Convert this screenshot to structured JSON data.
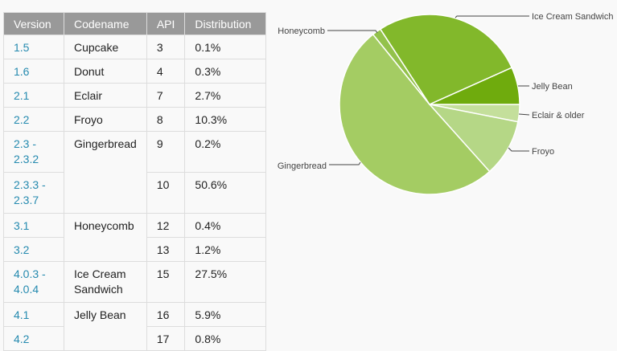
{
  "table": {
    "headers": [
      "Version",
      "Codename",
      "API",
      "Distribution"
    ],
    "rows": [
      {
        "version": "1.5",
        "codename": "Cupcake",
        "api": "3",
        "distribution": "0.1%"
      },
      {
        "version": "1.6",
        "codename": "Donut",
        "api": "4",
        "distribution": "0.3%"
      },
      {
        "version": "2.1",
        "codename": "Eclair",
        "api": "7",
        "distribution": "2.7%"
      },
      {
        "version": "2.2",
        "codename": "Froyo",
        "api": "8",
        "distribution": "10.3%"
      },
      {
        "version_line1": "2.3 -",
        "version_line2": "2.3.2",
        "codename": "Gingerbread",
        "api": "9",
        "distribution": "0.2%"
      },
      {
        "version_line1": "2.3.3 -",
        "version_line2": "2.3.7",
        "api": "10",
        "distribution": "50.6%"
      },
      {
        "version": "3.1",
        "codename": "Honeycomb",
        "api": "12",
        "distribution": "0.4%"
      },
      {
        "version": "3.2",
        "api": "13",
        "distribution": "1.2%"
      },
      {
        "version_line1": "4.0.3 -",
        "version_line2": "4.0.4",
        "codename_line1": "Ice Cream",
        "codename_line2": "Sandwich",
        "api": "15",
        "distribution": "27.5%"
      },
      {
        "version": "4.1",
        "codename": "Jelly Bean",
        "api": "16",
        "distribution": "5.9%"
      },
      {
        "version": "4.2",
        "api": "17",
        "distribution": "0.8%"
      }
    ]
  },
  "chart_data": {
    "type": "pie",
    "title": "",
    "categories": [
      "Eclair & older",
      "Froyo",
      "Gingerbread",
      "Honeycomb",
      "Ice Cream Sandwich",
      "Jelly Bean"
    ],
    "values": [
      3.1,
      10.3,
      50.8,
      1.6,
      27.5,
      6.7
    ],
    "colors": [
      "#c4df9b",
      "#b5d786",
      "#a4cc63",
      "#93c24b",
      "#82b82b",
      "#6fab0d"
    ],
    "legend_position": "outside labels with leader lines"
  }
}
